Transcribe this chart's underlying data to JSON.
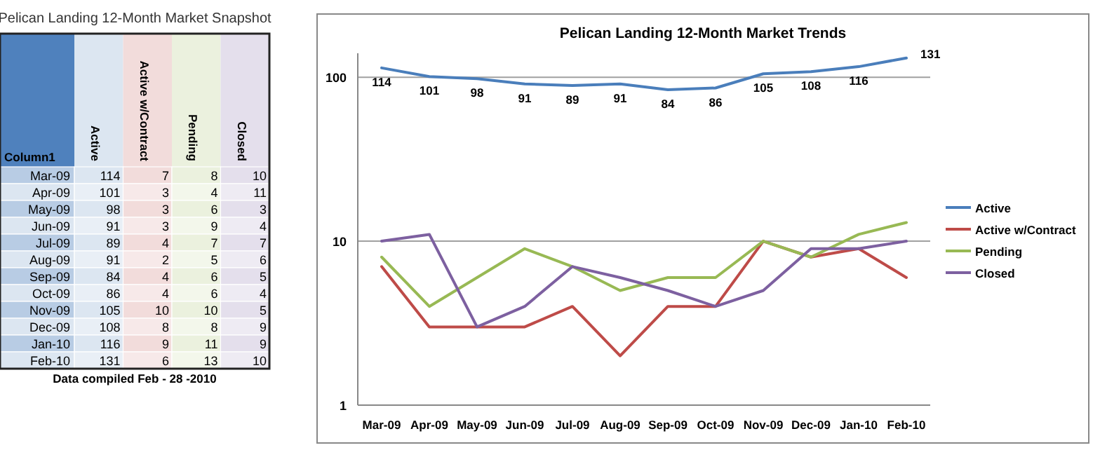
{
  "chart_data": [
    {
      "type": "heatmap",
      "title": "Pelican Landing 12-Month Market Snapshot",
      "annotations": [
        "Column1",
        "Data compiled Feb - 28 -2010"
      ],
      "categories": [
        "Active",
        "Active w/Contract",
        "Pending",
        "Closed"
      ],
      "y_categories": [
        "Mar-09",
        "Apr-09",
        "May-09",
        "Jun-09",
        "Jul-09",
        "Aug-09",
        "Sep-09",
        "Oct-09",
        "Nov-09",
        "Dec-09",
        "Jan-10",
        "Feb-10"
      ],
      "cells": [
        [
          114,
          7,
          8,
          10
        ],
        [
          101,
          3,
          4,
          11
        ],
        [
          98,
          3,
          6,
          3
        ],
        [
          91,
          3,
          9,
          4
        ],
        [
          89,
          4,
          7,
          7
        ],
        [
          91,
          2,
          5,
          6
        ],
        [
          84,
          4,
          6,
          5
        ],
        [
          86,
          4,
          6,
          4
        ],
        [
          105,
          10,
          10,
          5
        ],
        [
          108,
          8,
          8,
          9
        ],
        [
          116,
          9,
          11,
          9
        ],
        [
          131,
          6,
          13,
          10
        ]
      ],
      "data_labels": true
    },
    {
      "type": "line",
      "title": "Pelican Landing 12-Month Market Trends",
      "categories": [
        "Mar-09",
        "Apr-09",
        "May-09",
        "Jun-09",
        "Jul-09",
        "Aug-09",
        "Sep-09",
        "Oct-09",
        "Nov-09",
        "Dec-09",
        "Jan-10",
        "Feb-10"
      ],
      "series": [
        {
          "name": "Active",
          "color": "#4a7ebb",
          "values": [
            114,
            101,
            98,
            91,
            89,
            91,
            84,
            86,
            105,
            108,
            116,
            131
          ],
          "value_labels": [
            "114",
            "101",
            "98",
            "91",
            "89",
            "91",
            "84",
            "86",
            "105",
            "108",
            "116",
            "131"
          ]
        },
        {
          "name": "Active w/Contract",
          "color": "#be4b48",
          "values": [
            7,
            3,
            3,
            3,
            4,
            2,
            4,
            4,
            10,
            8,
            9,
            6
          ]
        },
        {
          "name": "Pending",
          "color": "#98b954",
          "values": [
            8,
            4,
            6,
            9,
            7,
            5,
            6,
            6,
            10,
            8,
            11,
            13
          ]
        },
        {
          "name": "Closed",
          "color": "#7d60a0",
          "values": [
            10,
            11,
            3,
            4,
            7,
            6,
            5,
            4,
            5,
            9,
            9,
            10
          ]
        }
      ],
      "log": true,
      "ylim": [
        1,
        140
      ],
      "yticks": [
        1,
        10,
        100
      ],
      "grid": "y",
      "legend": "right",
      "marker": "none",
      "line_style": "solid"
    }
  ]
}
